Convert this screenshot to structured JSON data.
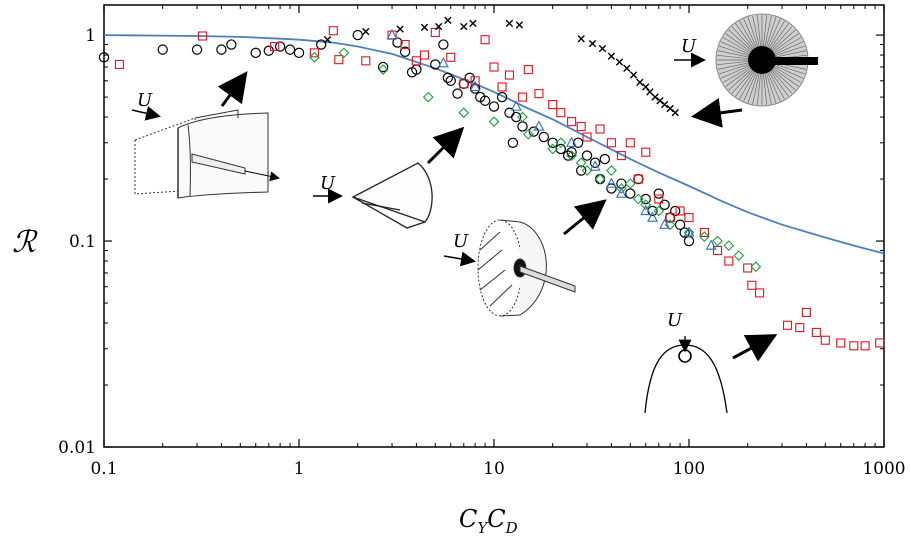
{
  "chart_data": {
    "type": "scatter",
    "title": "",
    "xlabel": "C_Y C_D",
    "xlabel_main": "C",
    "xlabel_sub1": "Y",
    "xlabel_mid": "C",
    "xlabel_sub2": "D",
    "ylabel": "ℛ",
    "xscale": "log",
    "yscale": "log",
    "xlim": [
      0.1,
      1000
    ],
    "ylim": [
      0.01,
      1.4
    ],
    "grid": false,
    "legend": "none",
    "x_ticks": [
      0.1,
      1,
      10,
      100,
      1000
    ],
    "x_tick_labels": [
      "0.1",
      "1",
      "10",
      "100",
      "1000"
    ],
    "y_ticks": [
      0.01,
      0.1,
      1
    ],
    "y_tick_labels": [
      "0.01",
      "0.1",
      "1"
    ],
    "annotation_flow_symbol": "U",
    "colors": {
      "model_curve": "#4a7fc1",
      "circles": "#000000",
      "squares": "#e0141e",
      "diamonds": "#1a9e3a",
      "triangles": "#2e6fbf",
      "crosses": "#000000",
      "arrows": "#000000"
    },
    "series": [
      {
        "marker": "line",
        "x": [
          0.1,
          0.3,
          0.5,
          0.8,
          1,
          1.5,
          2,
          3,
          5,
          8,
          10,
          15,
          20,
          30,
          50,
          70,
          100,
          150,
          200,
          300,
          500,
          700,
          1000
        ],
        "y": [
          1.0,
          0.99,
          0.98,
          0.96,
          0.95,
          0.92,
          0.88,
          0.81,
          0.69,
          0.58,
          0.53,
          0.44,
          0.39,
          0.32,
          0.25,
          0.215,
          0.185,
          0.155,
          0.138,
          0.12,
          0.104,
          0.095,
          0.087
        ]
      },
      {
        "marker": "circle",
        "x": [
          0.1,
          0.2,
          0.3,
          0.4,
          0.45,
          0.6,
          0.7,
          0.8,
          0.9,
          1.0,
          1.3,
          2.0,
          2.7,
          3.2,
          3.5,
          3.8,
          4.0,
          5.0,
          5.5,
          5.8,
          6.0,
          6.5,
          7.0,
          7.5,
          8.0,
          8.5,
          9.0,
          10.0,
          11.0,
          12.0,
          12.5,
          13.0,
          14.0,
          16.0,
          18.0,
          20.0,
          22.0,
          24.0,
          25.0,
          27.0,
          28.0,
          30.0,
          33.0,
          35.0,
          37.0,
          40.0,
          45.0,
          50.0,
          55.0,
          60.0,
          65.0,
          70.0,
          75.0,
          80.0,
          85.0,
          90.0,
          95.0,
          100.0
        ],
        "y": [
          0.78,
          0.85,
          0.85,
          0.85,
          0.9,
          0.82,
          0.84,
          0.88,
          0.85,
          0.82,
          0.9,
          1.0,
          0.7,
          0.92,
          0.83,
          0.66,
          0.68,
          0.72,
          0.9,
          0.62,
          0.6,
          0.52,
          0.58,
          0.62,
          0.55,
          0.5,
          0.48,
          0.45,
          0.5,
          0.42,
          0.3,
          0.4,
          0.36,
          0.34,
          0.32,
          0.3,
          0.28,
          0.26,
          0.27,
          0.3,
          0.22,
          0.26,
          0.24,
          0.2,
          0.25,
          0.18,
          0.19,
          0.17,
          0.2,
          0.16,
          0.14,
          0.17,
          0.15,
          0.13,
          0.14,
          0.12,
          0.11,
          0.1
        ]
      },
      {
        "marker": "square",
        "x": [
          0.12,
          0.32,
          0.75,
          1.2,
          1.5,
          1.6,
          2.2,
          3.0,
          3.5,
          4.0,
          4.4,
          5.0,
          6.0,
          7.0,
          8.0,
          9.0,
          10.0,
          11.0,
          12.0,
          14.0,
          15.0,
          17.0,
          20.0,
          22.0,
          25.0,
          28.0,
          30.0,
          35.0,
          40.0,
          45.0,
          50.0,
          55.0,
          60.0,
          70.0,
          80.0,
          90.0,
          100.0,
          120.0,
          140.0,
          160.0,
          200.0,
          210.0,
          230.0,
          320.0,
          370.0,
          400.0,
          450.0,
          500.0,
          600.0,
          700.0,
          800.0,
          950.0
        ],
        "y": [
          0.72,
          0.99,
          0.88,
          0.82,
          1.05,
          0.76,
          0.75,
          1.0,
          0.9,
          0.75,
          0.8,
          1.03,
          0.78,
          0.58,
          0.6,
          0.95,
          0.7,
          0.56,
          0.64,
          0.5,
          0.68,
          0.52,
          0.46,
          0.42,
          0.38,
          0.36,
          0.32,
          0.35,
          0.3,
          0.26,
          0.3,
          0.2,
          0.27,
          0.16,
          0.13,
          0.14,
          0.13,
          0.11,
          0.09,
          0.08,
          0.074,
          0.061,
          0.056,
          0.039,
          0.038,
          0.045,
          0.036,
          0.033,
          0.032,
          0.031,
          0.031,
          0.032
        ]
      },
      {
        "marker": "diamond",
        "x": [
          1.2,
          1.7,
          2.7,
          4.6,
          7.0,
          10.0,
          14.0,
          15.0,
          20.0,
          22.0,
          25.0,
          28.0,
          30.0,
          35.0,
          40.0,
          45.0,
          50.0,
          55.0,
          60.0,
          70.0,
          80.0,
          100.0,
          120.0,
          140.0,
          160.0,
          180.0,
          220.0
        ],
        "y": [
          0.78,
          0.82,
          0.68,
          0.5,
          0.42,
          0.38,
          0.4,
          0.33,
          0.28,
          0.3,
          0.26,
          0.24,
          0.22,
          0.2,
          0.22,
          0.18,
          0.19,
          0.16,
          0.15,
          0.14,
          0.12,
          0.11,
          0.105,
          0.1,
          0.095,
          0.085,
          0.075
        ]
      },
      {
        "marker": "triangle",
        "x": [
          3.0,
          5.5,
          8.0,
          13.0,
          17.0,
          25.0,
          33.0,
          40.0,
          45.0,
          60.0,
          65.0,
          75.0,
          100.0,
          130.0
        ],
        "y": [
          1.0,
          0.73,
          0.56,
          0.45,
          0.36,
          0.3,
          0.23,
          0.19,
          0.17,
          0.14,
          0.13,
          0.12,
          0.11,
          0.095
        ]
      },
      {
        "marker": "cross",
        "x": [
          1.4,
          2.2,
          3.3,
          4.4,
          5.2,
          5.8,
          7.0,
          7.8,
          12.0,
          13.5,
          28.0,
          32.0,
          36.0,
          40.0,
          44.0,
          48.0,
          52.0,
          56.0,
          60.0,
          63.0,
          67.0,
          71.0,
          75.0,
          80.0,
          85.0
        ],
        "y": [
          0.95,
          1.04,
          1.07,
          1.09,
          1.1,
          1.18,
          1.1,
          1.14,
          1.14,
          1.12,
          0.96,
          0.91,
          0.86,
          0.79,
          0.74,
          0.69,
          0.64,
          0.59,
          0.56,
          0.53,
          0.5,
          0.48,
          0.46,
          0.44,
          0.42
        ]
      }
    ]
  }
}
